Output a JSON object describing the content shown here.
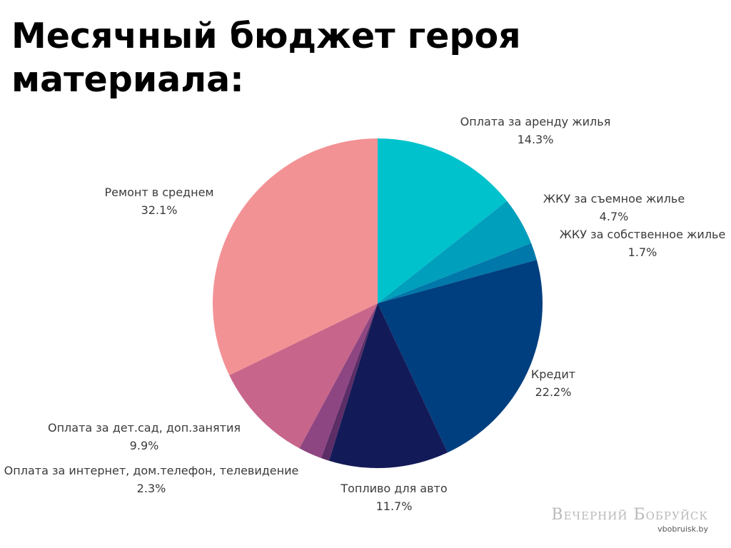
{
  "chart_data": {
    "type": "pie",
    "title": "Месячный бюджет героя материала:",
    "slices": [
      {
        "label": "Оплата за аренду жилья",
        "value": 14.3,
        "value_label": "14.3%",
        "color": "#00c2cc"
      },
      {
        "label": "ЖКУ за съемное жилье",
        "value": 4.7,
        "value_label": "4.7%",
        "color": "#009fbc"
      },
      {
        "label": "ЖКУ за собственное жилье",
        "value": 1.7,
        "value_label": "1.7%",
        "color": "#0078aa"
      },
      {
        "label": "Кредит",
        "value": 22.2,
        "value_label": "22.2%",
        "color": "#003f7f"
      },
      {
        "label": "Топливо для авто",
        "value": 11.7,
        "value_label": "11.7%",
        "color": "#131a58"
      },
      {
        "label": "",
        "value": 0.8,
        "value_label": "",
        "color": "#5c2d67"
      },
      {
        "label": "Оплата за интернет, дом.телефон, телевидение",
        "value": 2.3,
        "value_label": "2.3%",
        "color": "#8e4682"
      },
      {
        "label": "Оплата за дет.сад, доп.занятия",
        "value": 9.9,
        "value_label": "9.9%",
        "color": "#c8658a"
      },
      {
        "label": "Ремонт в среднем",
        "value": 32.1,
        "value_label": "32.1%",
        "color": "#f39295"
      }
    ],
    "start_angle": "12 o'clock",
    "direction": "clockwise",
    "legend": "none"
  },
  "watermark": {
    "name": "Вечерний Бобруйск",
    "url": "vbobruisk.by"
  }
}
